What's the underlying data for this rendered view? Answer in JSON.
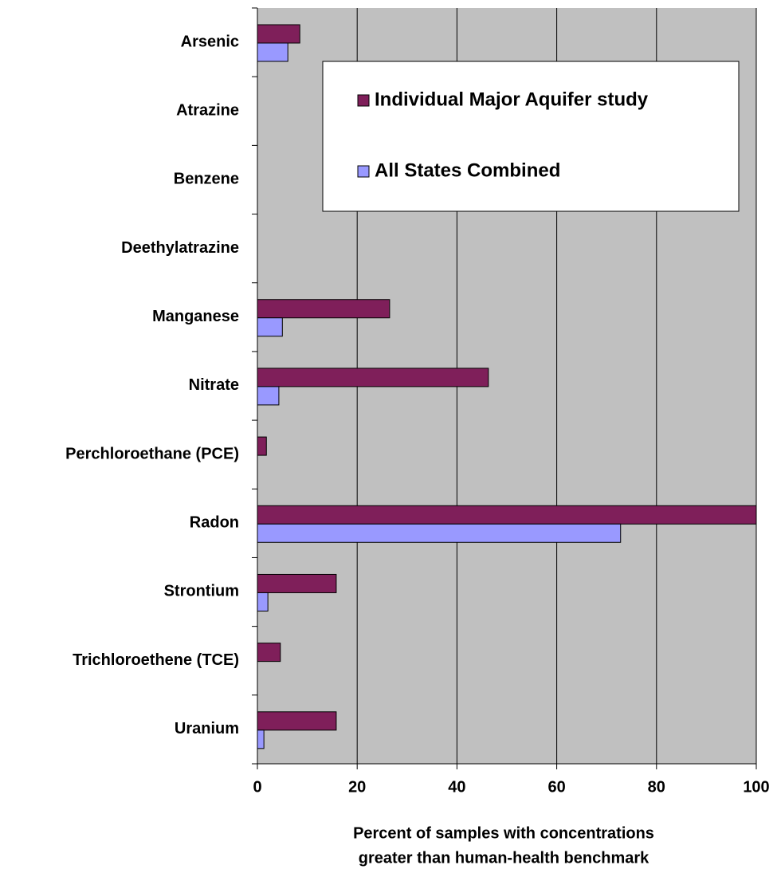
{
  "chart_data": {
    "type": "bar",
    "orientation": "horizontal",
    "categories": [
      "Arsenic",
      "Atrazine",
      "Benzene",
      "Deethylatrazine",
      "Manganese",
      "Nitrate",
      "Perchloroethane (PCE)",
      "Radon",
      "Strontium",
      "Trichloroethene (TCE)",
      "Uranium"
    ],
    "series": [
      {
        "name": "Individual Major Aquifer study",
        "color": "#7f1f5a",
        "values": [
          8.5,
          null,
          null,
          null,
          26.5,
          46.3,
          1.8,
          100,
          15.8,
          4.6,
          15.8
        ]
      },
      {
        "name": "All States Combined",
        "color": "#9999ff",
        "values": [
          6.1,
          null,
          null,
          null,
          5,
          4.3,
          null,
          72.8,
          2.1,
          null,
          1.3
        ]
      }
    ],
    "xlabel": [
      "Percent of samples with concentrations",
      "greater than human-health benchmark"
    ],
    "xlim": [
      0,
      100
    ],
    "xticks": [
      0,
      20,
      40,
      60,
      80,
      100
    ],
    "grid": true,
    "background": "#c0c0c0"
  }
}
